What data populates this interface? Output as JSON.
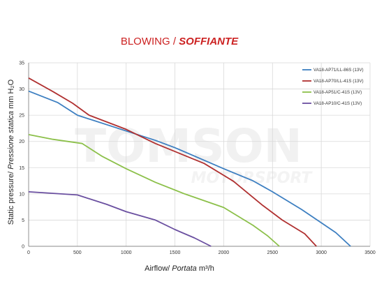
{
  "chart_data": {
    "type": "line",
    "title": "BLOWING",
    "title_separator": " / ",
    "subtitle": "SOFFIANTE",
    "title_color": "#cc2222",
    "xlabel": "Airflow",
    "xlabel_italic": "Portata",
    "xlabel_unit": "m³/h",
    "ylabel": "Static pressure",
    "ylabel_italic": "Pressione statica",
    "ylabel_unit": "mm H₂O",
    "xlim": [
      0,
      3500
    ],
    "ylim": [
      0,
      35
    ],
    "xticks": [
      0,
      500,
      1000,
      1500,
      2000,
      2500,
      3000,
      3500
    ],
    "yticks": [
      0,
      5,
      10,
      15,
      20,
      25,
      30,
      35
    ],
    "grid": true,
    "legend_position": "top-right",
    "watermark": [
      "TOMSON",
      "MOTORSPORT"
    ],
    "series": [
      {
        "name": "VA18-AP71/LL-86S (13V)",
        "color": "#3d7fc1",
        "points": [
          [
            0,
            29.6
          ],
          [
            300,
            27.4
          ],
          [
            500,
            25.0
          ],
          [
            1000,
            22.0
          ],
          [
            1300,
            20.2
          ],
          [
            1500,
            18.8
          ],
          [
            2000,
            14.8
          ],
          [
            2300,
            12.5
          ],
          [
            2500,
            10.4
          ],
          [
            2800,
            7.0
          ],
          [
            3000,
            4.5
          ],
          [
            3150,
            2.6
          ],
          [
            3300,
            0
          ]
        ]
      },
      {
        "name": "VA18-AP70/LL-41S (13V)",
        "color": "#b03030",
        "points": [
          [
            0,
            32.1
          ],
          [
            250,
            29.5
          ],
          [
            450,
            27.3
          ],
          [
            620,
            25.0
          ],
          [
            1000,
            22.3
          ],
          [
            1300,
            19.6
          ],
          [
            1800,
            15.8
          ],
          [
            2100,
            12.4
          ],
          [
            2400,
            7.8
          ],
          [
            2600,
            5.0
          ],
          [
            2830,
            2.4
          ],
          [
            2950,
            0
          ]
        ]
      },
      {
        "name": "VA18-AP51/C-41S (13V)",
        "color": "#8cc04a",
        "points": [
          [
            0,
            21.3
          ],
          [
            250,
            20.4
          ],
          [
            550,
            19.6
          ],
          [
            750,
            17.2
          ],
          [
            1000,
            14.8
          ],
          [
            1300,
            12.2
          ],
          [
            1600,
            10.0
          ],
          [
            2000,
            7.4
          ],
          [
            2300,
            4.0
          ],
          [
            2450,
            2.0
          ],
          [
            2570,
            0
          ]
        ]
      },
      {
        "name": "VA18-AP10/C-41S (13V)",
        "color": "#6a4fa0",
        "points": [
          [
            0,
            10.4
          ],
          [
            500,
            9.8
          ],
          [
            800,
            8.0
          ],
          [
            1000,
            6.6
          ],
          [
            1300,
            5.0
          ],
          [
            1500,
            3.2
          ],
          [
            1700,
            1.6
          ],
          [
            1870,
            0
          ]
        ]
      }
    ]
  }
}
